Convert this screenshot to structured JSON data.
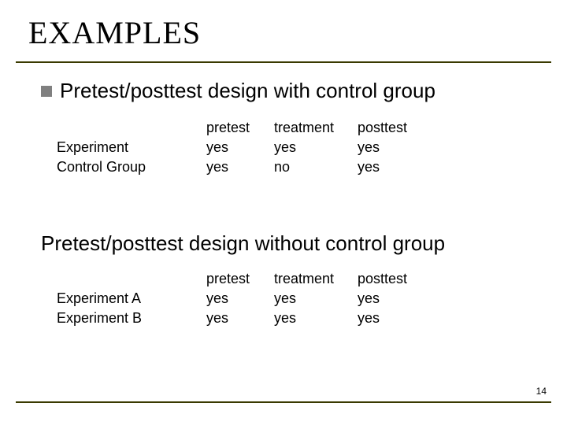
{
  "title": "EXAMPLES",
  "heading1": "Pretest/posttest design with control group",
  "table1": {
    "columns": [
      "pretest",
      "treatment",
      "posttest"
    ],
    "rows": [
      {
        "label": "Experiment",
        "cells": [
          "yes",
          "yes",
          "yes"
        ]
      },
      {
        "label": "Control Group",
        "cells": [
          "yes",
          "no",
          "yes"
        ]
      }
    ]
  },
  "heading2": "Pretest/posttest design without control group",
  "table2": {
    "columns": [
      "pretest",
      "treatment",
      "posttest"
    ],
    "rows": [
      {
        "label": "Experiment A",
        "cells": [
          "yes",
          "yes",
          "yes"
        ]
      },
      {
        "label": "Experiment B",
        "cells": [
          "yes",
          "yes",
          "yes"
        ]
      }
    ]
  },
  "page_number": "14",
  "colors": {
    "rule": "#3a3a00",
    "bullet": "#808080",
    "text": "#000000",
    "background": "#ffffff"
  },
  "fonts": {
    "title_family": "Times New Roman",
    "title_size_pt": 30,
    "heading_size_pt": 20,
    "body_size_pt": 14,
    "pagenum_size_pt": 9
  }
}
